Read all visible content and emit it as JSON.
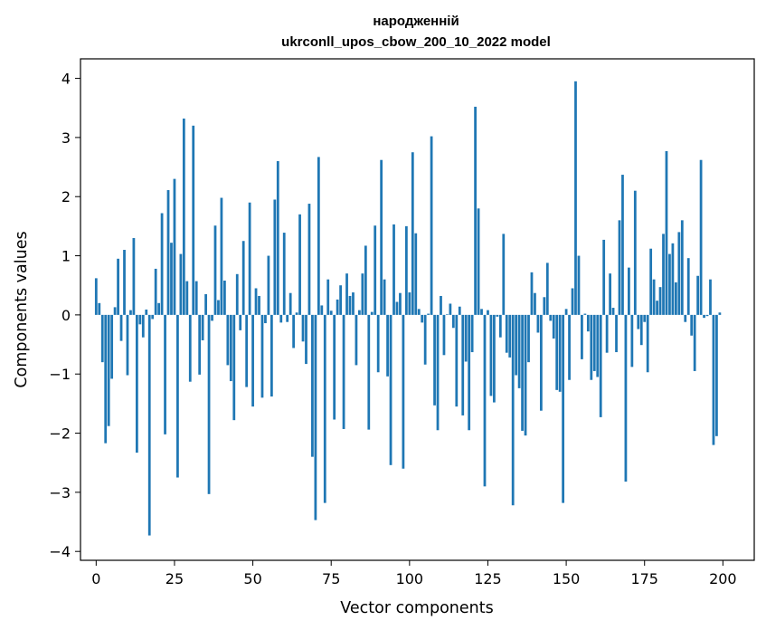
{
  "chart_data": {
    "type": "bar",
    "title": "народженній",
    "subtitle": "ukrconll_upos_cbow_200_10_2022 model",
    "xlabel": "Vector components",
    "ylabel": "Components values",
    "xlim": [
      -5,
      210
    ],
    "ylim": [
      -4.15,
      4.33
    ],
    "xticks": [
      0,
      25,
      50,
      75,
      100,
      125,
      150,
      175,
      200
    ],
    "yticks": [
      -4,
      -3,
      -2,
      -1,
      0,
      1,
      2,
      3,
      4
    ],
    "bar_color": "#1f77b4",
    "values": [
      0.62,
      0.2,
      -0.8,
      -2.17,
      -1.88,
      -1.08,
      0.13,
      0.95,
      -0.44,
      1.1,
      -1.02,
      0.08,
      1.3,
      -2.33,
      -0.16,
      -0.38,
      0.09,
      -3.73,
      -0.07,
      0.78,
      0.2,
      1.72,
      -2.02,
      2.11,
      1.22,
      2.3,
      -2.75,
      1.03,
      3.32,
      0.57,
      -1.13,
      3.2,
      0.57,
      -1.01,
      -0.43,
      0.35,
      -3.03,
      -0.1,
      1.51,
      0.25,
      1.98,
      0.58,
      -0.85,
      -1.12,
      -1.78,
      0.69,
      -0.26,
      1.25,
      -1.22,
      1.9,
      -1.55,
      0.45,
      0.32,
      -1.4,
      -0.14,
      1.0,
      -1.38,
      1.95,
      2.6,
      -0.13,
      1.39,
      -0.12,
      0.37,
      -0.56,
      0.04,
      1.7,
      -0.45,
      -0.83,
      1.88,
      -2.4,
      -3.47,
      2.67,
      0.16,
      -3.18,
      0.6,
      0.07,
      -1.77,
      0.26,
      0.5,
      -1.93,
      0.7,
      0.32,
      0.38,
      -0.85,
      0.08,
      0.7,
      1.17,
      -1.94,
      0.05,
      1.51,
      -0.97,
      2.62,
      0.6,
      -1.04,
      -2.54,
      1.53,
      0.22,
      0.37,
      -2.6,
      1.5,
      0.38,
      2.75,
      1.38,
      0.1,
      -0.13,
      -0.84,
      0.02,
      3.02,
      -1.53,
      -1.95,
      0.32,
      -0.68,
      0.01,
      0.19,
      -0.22,
      -1.55,
      0.14,
      -1.7,
      -0.79,
      -1.95,
      -0.63,
      3.52,
      1.8,
      0.1,
      -2.9,
      0.08,
      -1.37,
      -1.48,
      -0.03,
      -0.38,
      1.37,
      -0.64,
      -0.72,
      -3.22,
      -1.02,
      -1.24,
      -1.96,
      -2.04,
      -0.8,
      0.72,
      0.37,
      -0.3,
      -1.62,
      0.3,
      0.88,
      -0.1,
      -0.4,
      -1.27,
      -1.3,
      -3.18,
      0.1,
      -1.1,
      0.45,
      3.95,
      1.0,
      -0.75,
      0.02,
      -0.28,
      -1.1,
      -0.95,
      -1.05,
      -1.73,
      1.27,
      -0.64,
      0.7,
      0.12,
      -0.63,
      1.6,
      2.37,
      -2.82,
      0.8,
      -0.88,
      2.1,
      -0.24,
      -0.51,
      -0.12,
      -0.97,
      1.12,
      0.6,
      0.24,
      0.47,
      1.37,
      2.77,
      1.03,
      1.21,
      0.55,
      1.4,
      1.6,
      -0.12,
      0.96,
      -0.35,
      -0.95,
      0.66,
      2.62,
      -0.05,
      -0.02,
      0.6,
      -2.2,
      -2.05,
      0.04
    ]
  }
}
